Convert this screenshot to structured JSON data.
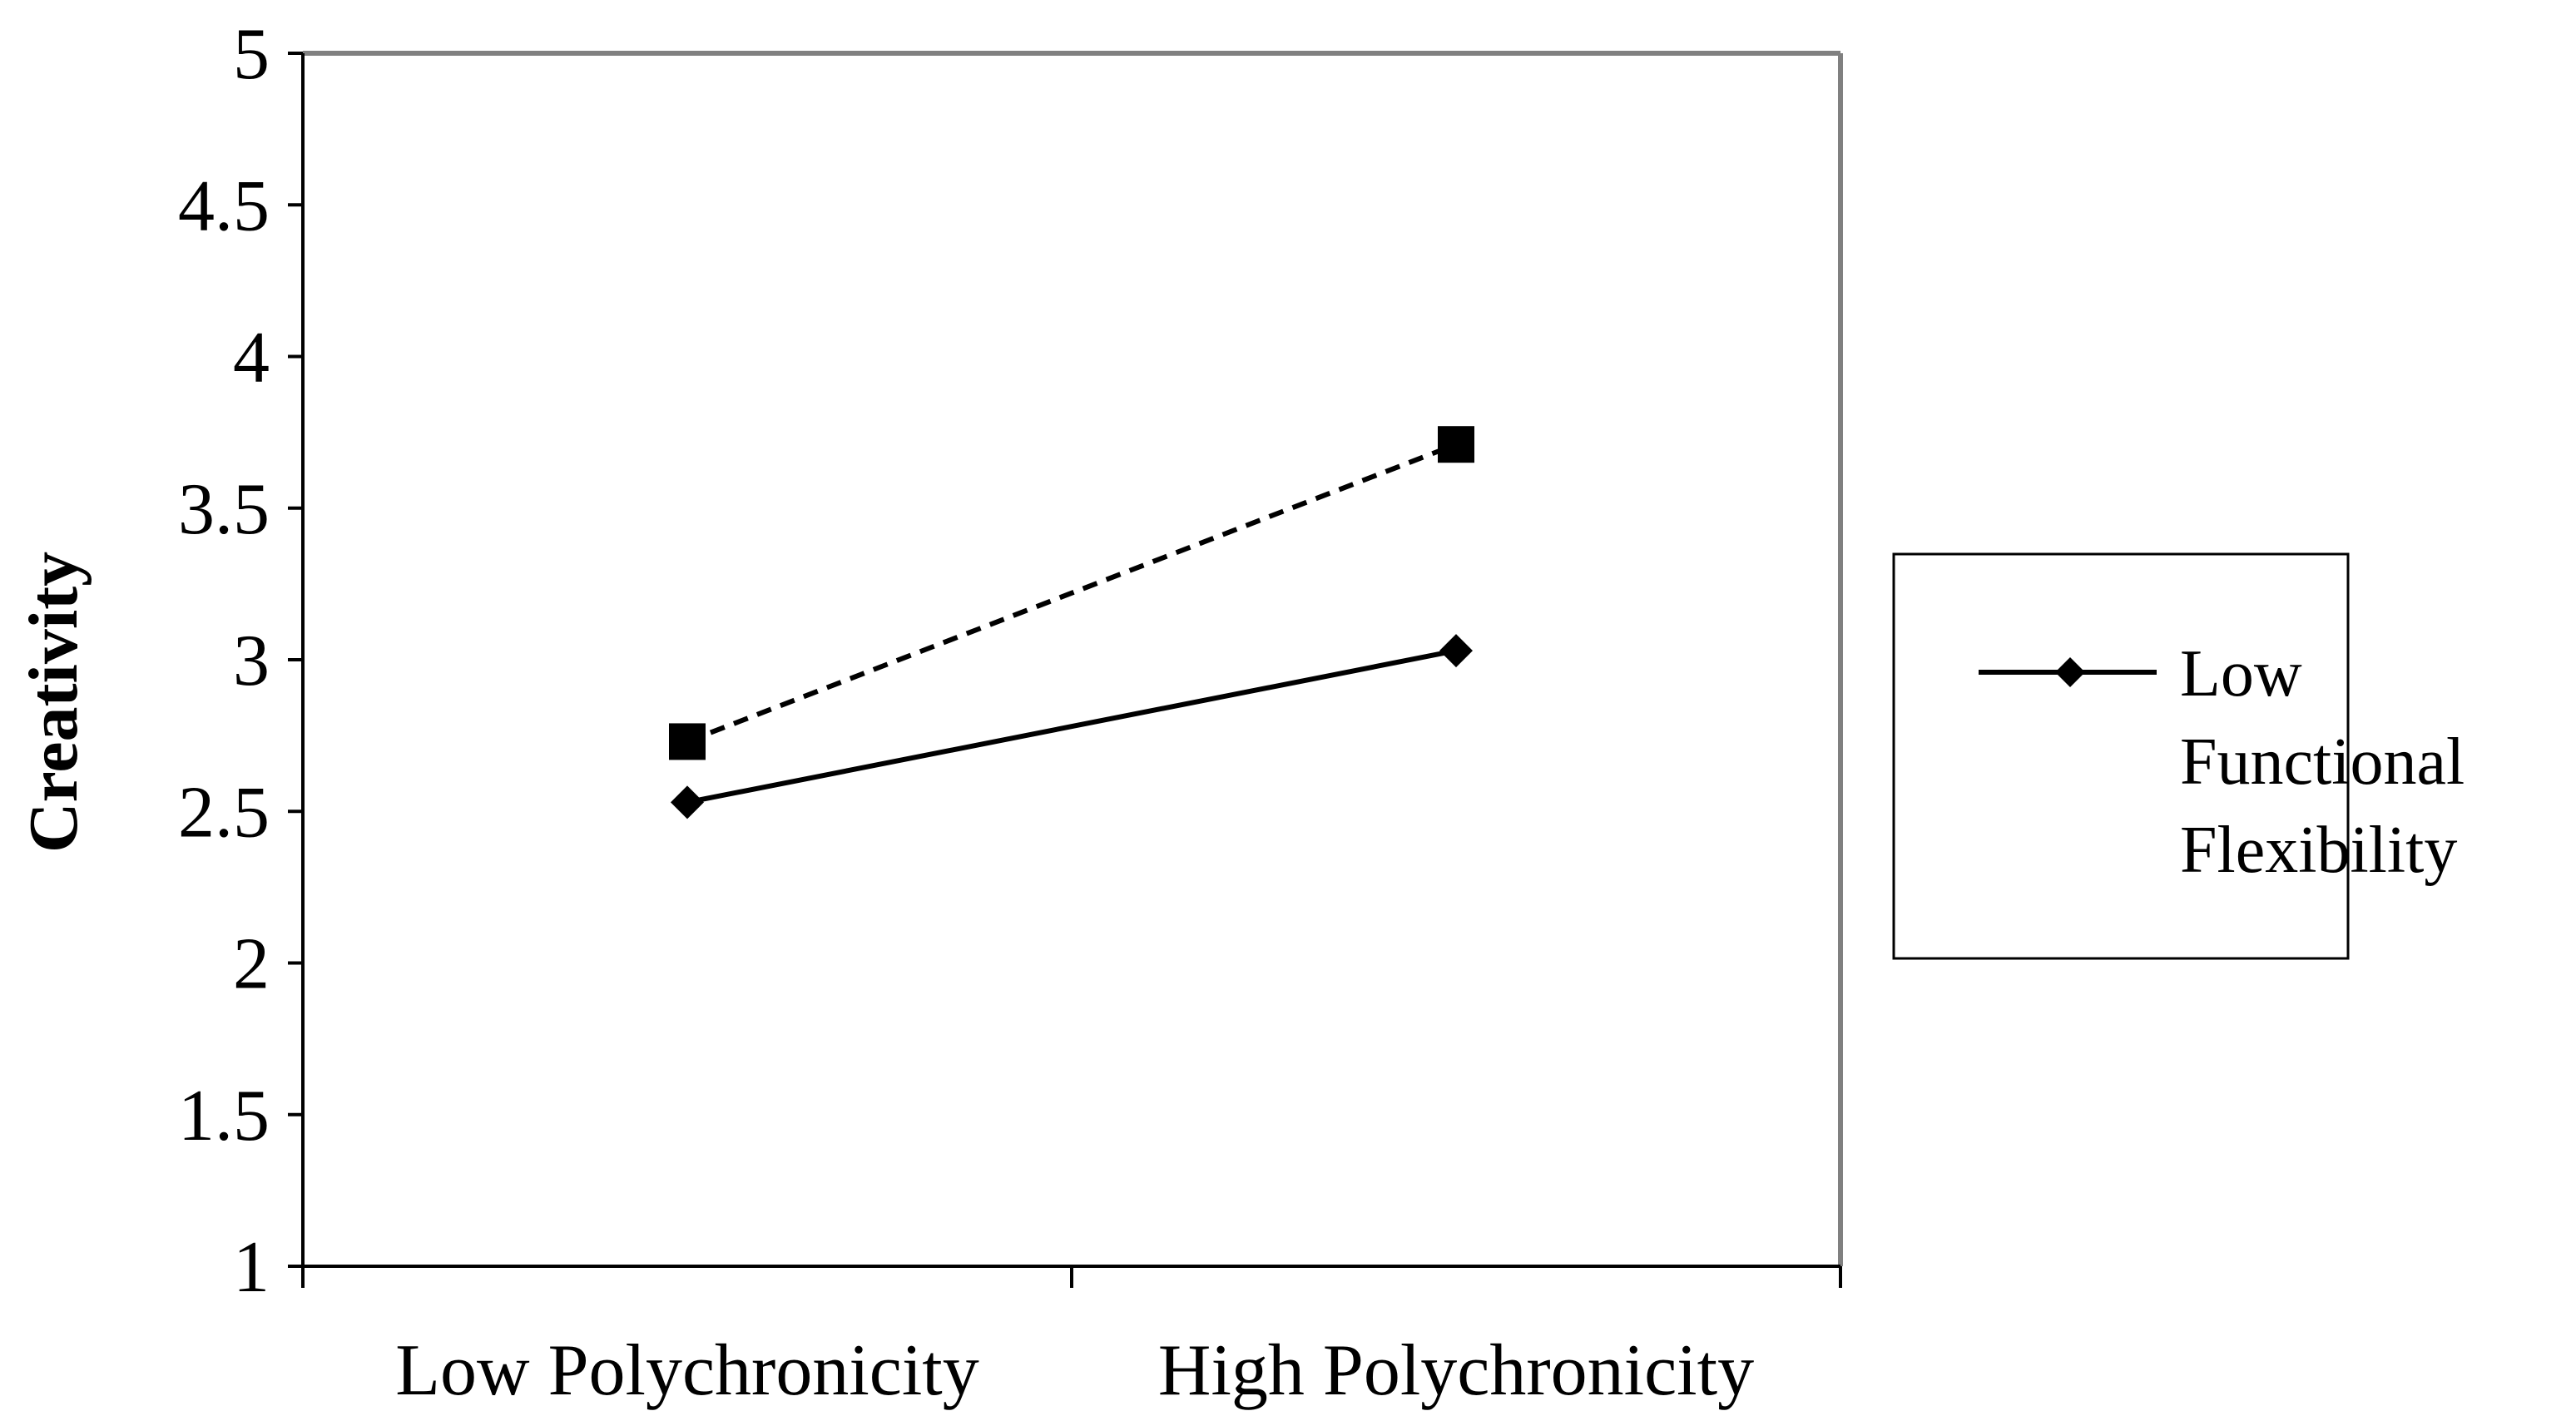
{
  "chart_data": {
    "type": "line",
    "title": "",
    "xlabel": "",
    "ylabel": "Creativity",
    "categories": [
      "Low Polychronicity",
      "High Polychronicity"
    ],
    "ylim": [
      1,
      5
    ],
    "yticks": [
      "1",
      "1.5",
      "2",
      "2.5",
      "3",
      "3.5",
      "4",
      "4.5",
      "5"
    ],
    "grid": false,
    "legend_position": "right",
    "series": [
      {
        "name": "Low Functional Flexibility",
        "legend_lines": [
          "Low",
          "Functional",
          "Flexibility"
        ],
        "values": [
          2.53,
          3.03
        ],
        "marker": "diamond",
        "line_style": "solid",
        "color": "#000000"
      },
      {
        "values": [
          2.73,
          3.71
        ],
        "marker": "square",
        "line_style": "dashed",
        "color": "#000000"
      }
    ]
  }
}
